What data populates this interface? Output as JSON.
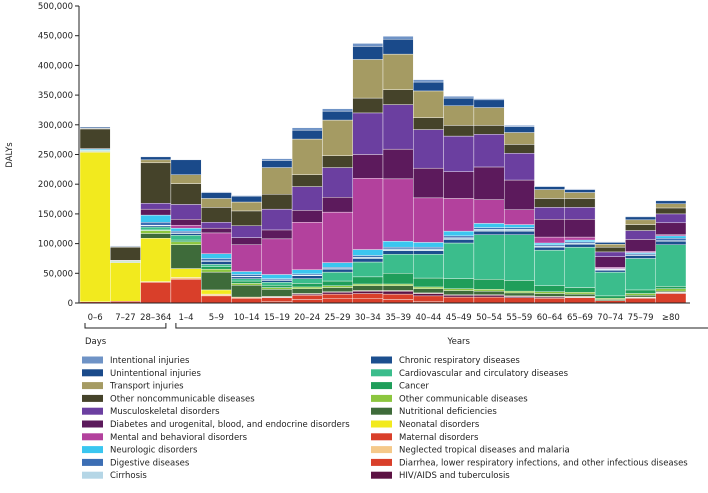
{
  "chart_data": {
    "type": "bar",
    "stacked": true,
    "ylabel": "DALYs",
    "ylim": [
      0,
      500000
    ],
    "yticks": [
      0,
      50000,
      100000,
      150000,
      200000,
      250000,
      300000,
      350000,
      400000,
      450000,
      500000
    ],
    "ytick_labels": [
      "0",
      "50,000",
      "100,000",
      "150,000",
      "200,000",
      "250,000",
      "300,000",
      "350,000",
      "400,000",
      "450,000",
      "500,000"
    ],
    "groups": [
      {
        "label": "Days",
        "from": 0,
        "to": 2
      },
      {
        "label": "Years",
        "from": 3,
        "to": 21
      }
    ],
    "categories": [
      "0–6",
      "7–27",
      "28–364",
      "1–4",
      "5–9",
      "10–14",
      "15–19",
      "20–24",
      "25–29",
      "30–34",
      "35–39",
      "40–44",
      "45–49",
      "50–54",
      "55–59",
      "60–64",
      "65–69",
      "70–74",
      "75–79",
      "≥80"
    ],
    "series": [
      {
        "name": "Maternal disorders",
        "color": "#d93f2a",
        "values": [
          0,
          0,
          0,
          0,
          0,
          0,
          2000,
          6000,
          8000,
          8000,
          6000,
          2000,
          0,
          0,
          0,
          0,
          0,
          0,
          0,
          0
        ]
      },
      {
        "name": "Diarrhea, lower respiratory infections, and other infectious diseases",
        "color": "#d93f2a",
        "values": [
          2000,
          3000,
          35000,
          40000,
          12000,
          8000,
          7000,
          7000,
          7000,
          8000,
          9000,
          10000,
          10000,
          10000,
          9000,
          8000,
          9000,
          4000,
          8000,
          16000
        ]
      },
      {
        "name": "HIV/AIDS and tuberculosis",
        "color": "#5c1243",
        "values": [
          0,
          0,
          0,
          0,
          0,
          0,
          1000,
          2000,
          3000,
          4000,
          5000,
          4000,
          3000,
          3000,
          2000,
          2000,
          1000,
          0,
          1000,
          1000
        ]
      },
      {
        "name": "Neglected tropical diseases and malaria",
        "color": "#f5c98a",
        "values": [
          0,
          0,
          1000,
          3000,
          3000,
          2000,
          1000,
          1000,
          1000,
          1000,
          1000,
          1000,
          1000,
          1000,
          1000,
          1000,
          1000,
          0,
          1000,
          1000
        ]
      },
      {
        "name": "Neonatal disorders",
        "color": "#f2ea1e",
        "values": [
          252000,
          65000,
          73000,
          15000,
          7000,
          0,
          0,
          0,
          0,
          0,
          0,
          0,
          0,
          0,
          0,
          0,
          0,
          0,
          0,
          0
        ]
      },
      {
        "name": "Nutritional deficiencies",
        "color": "#3e6b3a",
        "values": [
          1000,
          1000,
          8000,
          40000,
          30000,
          20000,
          12000,
          8000,
          7000,
          8000,
          8000,
          7000,
          7000,
          6000,
          5000,
          5000,
          4000,
          2000,
          3000,
          2000
        ]
      },
      {
        "name": "Other communicable diseases",
        "color": "#8cc63f",
        "values": [
          1000,
          1000,
          5000,
          5000,
          5000,
          3000,
          3000,
          3000,
          3000,
          3000,
          3000,
          3000,
          3000,
          3000,
          3000,
          3000,
          3000,
          2000,
          3000,
          4000
        ]
      },
      {
        "name": "Cancer",
        "color": "#1f9e5a",
        "values": [
          0,
          0,
          1000,
          3000,
          4000,
          4000,
          4000,
          6000,
          8000,
          12000,
          18000,
          15000,
          17000,
          17000,
          18000,
          10000,
          8000,
          4000,
          6000,
          4000
        ]
      },
      {
        "name": "Cardiovascular and circulatory diseases",
        "color": "#3bbd8c",
        "values": [
          1000,
          1000,
          5000,
          8000,
          4000,
          4000,
          5000,
          8000,
          15000,
          25000,
          32000,
          40000,
          60000,
          75000,
          77000,
          60000,
          68000,
          40000,
          53000,
          70000
        ]
      },
      {
        "name": "Chronic respiratory diseases",
        "color": "#1c4f8f",
        "values": [
          0,
          0,
          2000,
          3000,
          5000,
          3000,
          3000,
          5000,
          5000,
          6000,
          6000,
          6000,
          6000,
          6000,
          6000,
          5000,
          5000,
          3000,
          5000,
          6000
        ]
      },
      {
        "name": "Cirrhosis",
        "color": "#b5d6e6",
        "values": [
          0,
          0,
          1000,
          1000,
          1000,
          1000,
          1000,
          1000,
          1000,
          2000,
          3000,
          3000,
          3000,
          3000,
          3000,
          2000,
          2000,
          1000,
          1000,
          1000
        ]
      },
      {
        "name": "Digestive diseases",
        "color": "#3c6eb4",
        "values": [
          0,
          0,
          5000,
          3000,
          4000,
          3000,
          2000,
          2000,
          2000,
          3000,
          3000,
          3000,
          3000,
          3000,
          3000,
          2000,
          2000,
          1000,
          2000,
          4000
        ]
      },
      {
        "name": "Neurologic disorders",
        "color": "#3ac6f0",
        "values": [
          2000,
          0,
          12000,
          5000,
          8000,
          5000,
          7000,
          7000,
          8000,
          10000,
          10000,
          8000,
          8000,
          7000,
          5000,
          3000,
          3000,
          1000,
          2000,
          4000
        ]
      },
      {
        "name": "Mental and behavioral disorders",
        "color": "#b3419d",
        "values": [
          0,
          0,
          0,
          5000,
          35000,
          45000,
          60000,
          80000,
          85000,
          120000,
          105000,
          75000,
          55000,
          40000,
          25000,
          10000,
          5000,
          2000,
          2000,
          2000
        ]
      },
      {
        "name": "Diabetes and urogenital, blood, and endocrine disorders",
        "color": "#5c1a5c",
        "values": [
          1000,
          1000,
          10000,
          10000,
          8000,
          12000,
          15000,
          20000,
          25000,
          40000,
          50000,
          50000,
          45000,
          55000,
          50000,
          30000,
          30000,
          18000,
          20000,
          20000
        ]
      },
      {
        "name": "Musculoskeletal disorders",
        "color": "#6b3fa0",
        "values": [
          0,
          0,
          10000,
          25000,
          10000,
          20000,
          35000,
          40000,
          50000,
          70000,
          75000,
          65000,
          60000,
          55000,
          45000,
          20000,
          20000,
          8000,
          15000,
          15000
        ]
      },
      {
        "name": "Other noncommunicable diseases",
        "color": "#45432a",
        "values": [
          33000,
          22000,
          68000,
          35000,
          25000,
          25000,
          25000,
          20000,
          20000,
          25000,
          25000,
          20000,
          18000,
          15000,
          15000,
          15000,
          15000,
          8000,
          10000,
          10000
        ]
      },
      {
        "name": "Transport injuries",
        "color": "#a59b63",
        "values": [
          1000,
          1000,
          5000,
          15000,
          15000,
          15000,
          45000,
          60000,
          60000,
          65000,
          60000,
          45000,
          33000,
          30000,
          20000,
          15000,
          10000,
          5000,
          8000,
          7000
        ]
      },
      {
        "name": "Unintentional injuries",
        "color": "#1a4a8a",
        "values": [
          2000,
          1000,
          5000,
          25000,
          10000,
          10000,
          12000,
          15000,
          15000,
          22000,
          25000,
          15000,
          13000,
          13000,
          10000,
          5000,
          5000,
          3000,
          5000,
          5000
        ]
      },
      {
        "name": "Intentional injuries",
        "color": "#6f93c6",
        "values": [
          0,
          0,
          0,
          0,
          1000,
          1000,
          3000,
          4000,
          4000,
          5000,
          5000,
          4000,
          3000,
          2000,
          2000,
          1000,
          1000,
          1000,
          1000,
          1000
        ]
      }
    ],
    "legend": {
      "left": [
        "Intentional injuries",
        "Unintentional injuries",
        "Transport injuries",
        "Other noncommunicable diseases",
        "Musculoskeletal disorders",
        "Diabetes and urogenital, blood, and endocrine disorders",
        "Mental and behavioral disorders",
        "Neurologic disorders",
        "Digestive diseases",
        "Cirrhosis"
      ],
      "right": [
        "Chronic respiratory diseases",
        "Cardiovascular and circulatory diseases",
        "Cancer",
        "Other communicable diseases",
        "Nutritional deficiencies",
        "Neonatal disorders",
        "Maternal disorders",
        "Neglected tropical diseases and malaria",
        "Diarrhea, lower respiratory infections, and other infectious diseases",
        "HIV/AIDS and tuberculosis"
      ]
    }
  }
}
